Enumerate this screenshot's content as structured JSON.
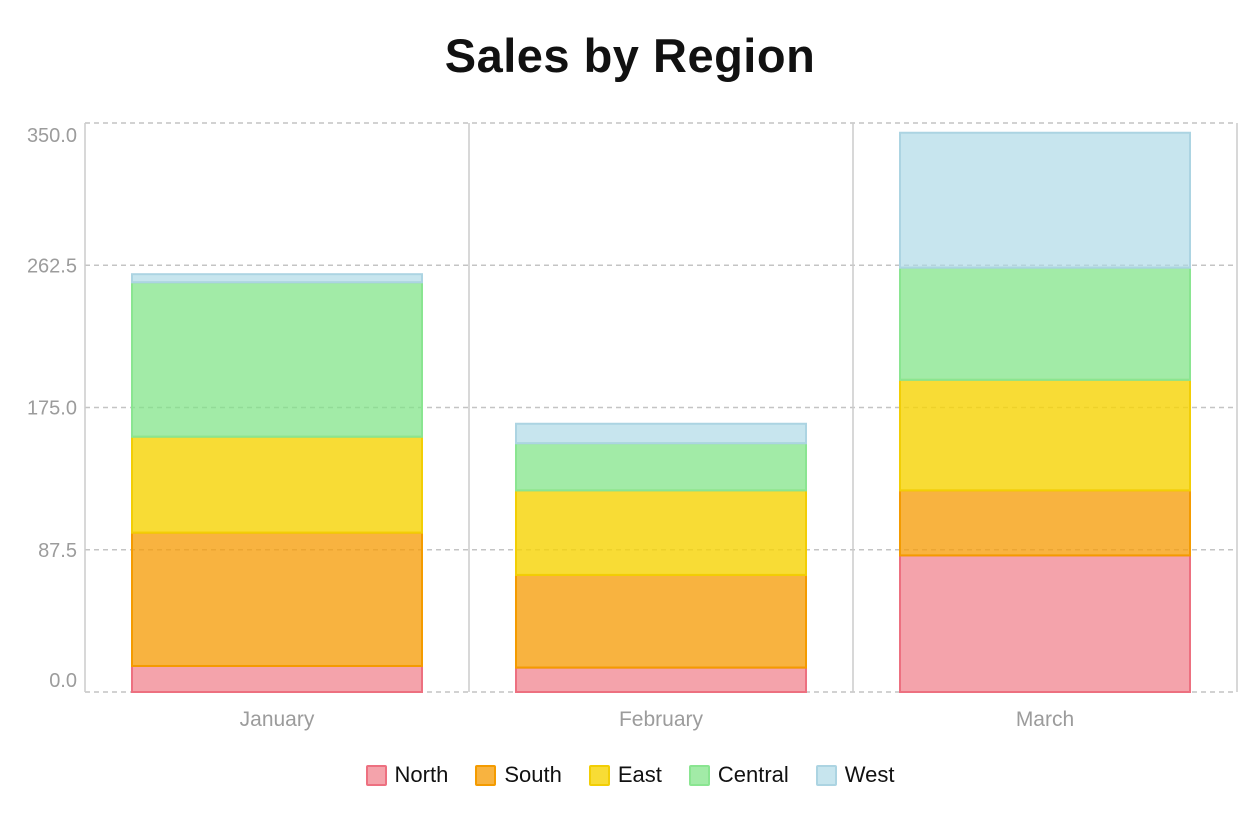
{
  "title": "Sales by Region",
  "chart_data": {
    "type": "bar",
    "stacked": true,
    "title": "Sales by Region",
    "xlabel": "",
    "ylabel": "",
    "categories": [
      "January",
      "February",
      "March"
    ],
    "series": [
      {
        "name": "North",
        "values": [
          16,
          15,
          84
        ],
        "fill": "rgba(238,106,119,0.62)",
        "border": "#ED7080"
      },
      {
        "name": "South",
        "values": [
          82,
          57,
          40
        ],
        "fill": "rgba(246,158,10,0.78)",
        "border": "#F49B00"
      },
      {
        "name": "East",
        "values": [
          59,
          52,
          68
        ],
        "fill": "rgba(247,212,9,0.82)",
        "border": "#F2CE05"
      },
      {
        "name": "Central",
        "values": [
          95,
          29,
          69
        ],
        "fill": "rgba(126,227,133,0.72)",
        "border": "#8AE591"
      },
      {
        "name": "West",
        "values": [
          5,
          12,
          83
        ],
        "fill": "rgba(173,216,230,0.68)",
        "border": "#ACD4E2"
      }
    ],
    "totals": [
      257,
      165,
      344
    ],
    "ylim": [
      0,
      350
    ],
    "yticks": [
      {
        "value": 0,
        "label": "0.0"
      },
      {
        "value": 87.5,
        "label": "87.5"
      },
      {
        "value": 175,
        "label": "175.0"
      },
      {
        "value": 262.5,
        "label": "262.5"
      },
      {
        "value": 350,
        "label": "350.0"
      }
    ],
    "grid": "horizontal dashed gridlines, solid vertical category separators",
    "legend_position": "bottom",
    "colors": {
      "tick_label": "#9c9c9c",
      "gridline_dashed": "#c4c4c4",
      "gridline_solid": "#cccccc",
      "title_text": "#111111",
      "legend_text": "#111111",
      "background": "#ffffff"
    }
  }
}
